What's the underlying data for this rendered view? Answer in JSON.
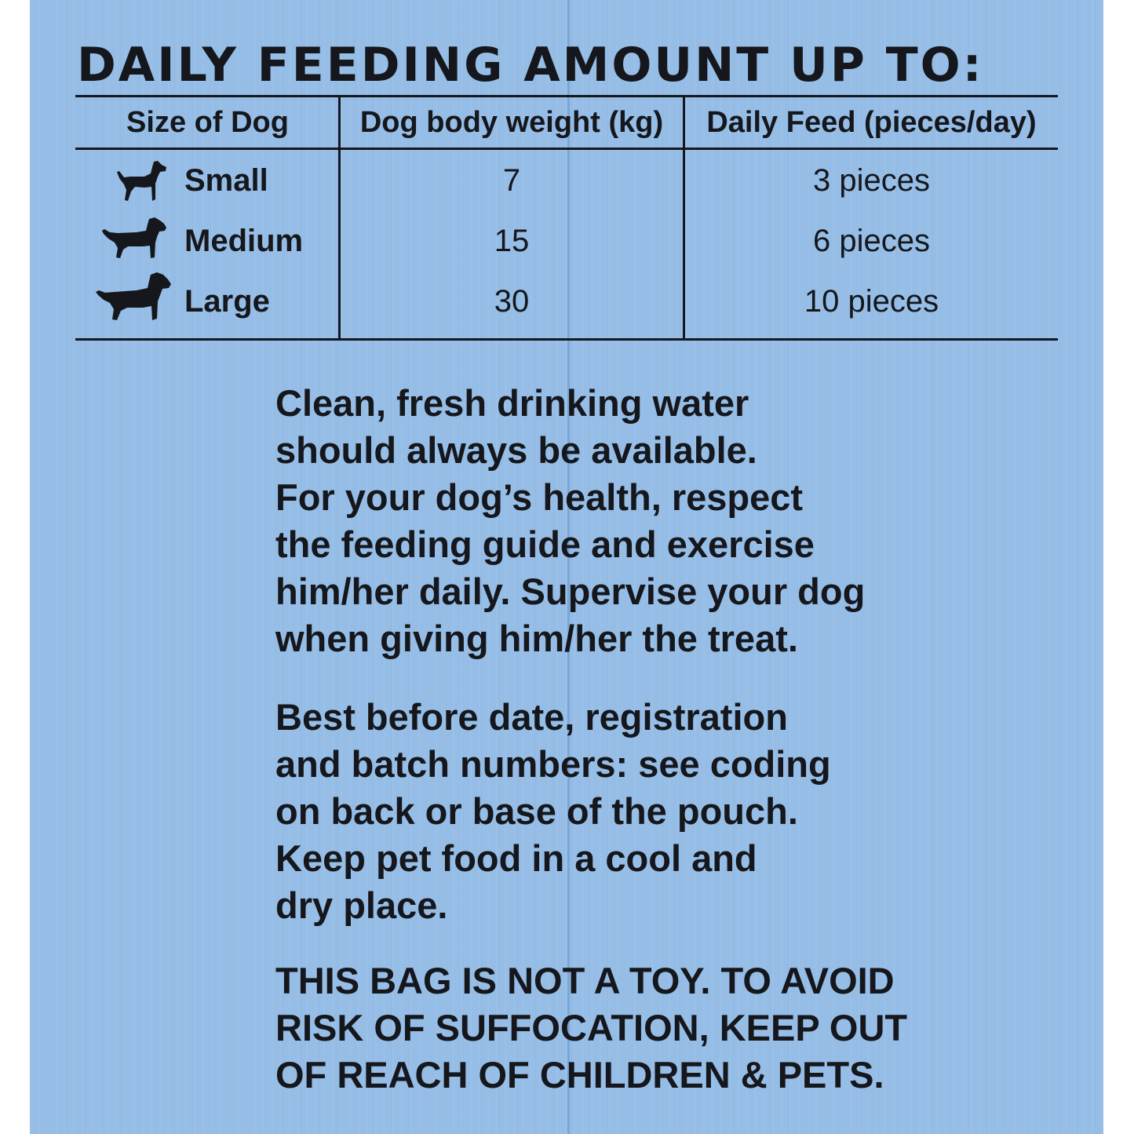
{
  "heading": "DAILY FEEDING AMOUNT UP TO:",
  "table": {
    "headers": [
      "Size of Dog",
      "Dog body weight (kg)",
      "Daily Feed (pieces/day)"
    ],
    "rows": [
      {
        "size": "Small",
        "icon": "small-dog-icon",
        "weight": "7",
        "feed": "3 pieces"
      },
      {
        "size": "Medium",
        "icon": "medium-dog-icon",
        "weight": "15",
        "feed": "6 pieces"
      },
      {
        "size": "Large",
        "icon": "large-dog-icon",
        "weight": "30",
        "feed": "10 pieces"
      }
    ]
  },
  "paragraphs": {
    "water": "Clean, fresh drinking water\nshould always be available.\nFor your dog’s health, respect\nthe feeding guide and exercise\nhim/her daily. Supervise your dog\nwhen giving him/her the treat.",
    "storage": "Best before date, registration\nand batch numbers: see coding\non back or base of the pouch.\nKeep pet food in a cool and\ndry place.",
    "warning": "THIS BAG IS NOT A TOY. TO AVOID\nRISK OF SUFFOCATION, KEEP OUT\nOF REACH OF CHILDREN & PETS."
  },
  "colors": {
    "background": "#95bde6",
    "text": "#15171c"
  }
}
